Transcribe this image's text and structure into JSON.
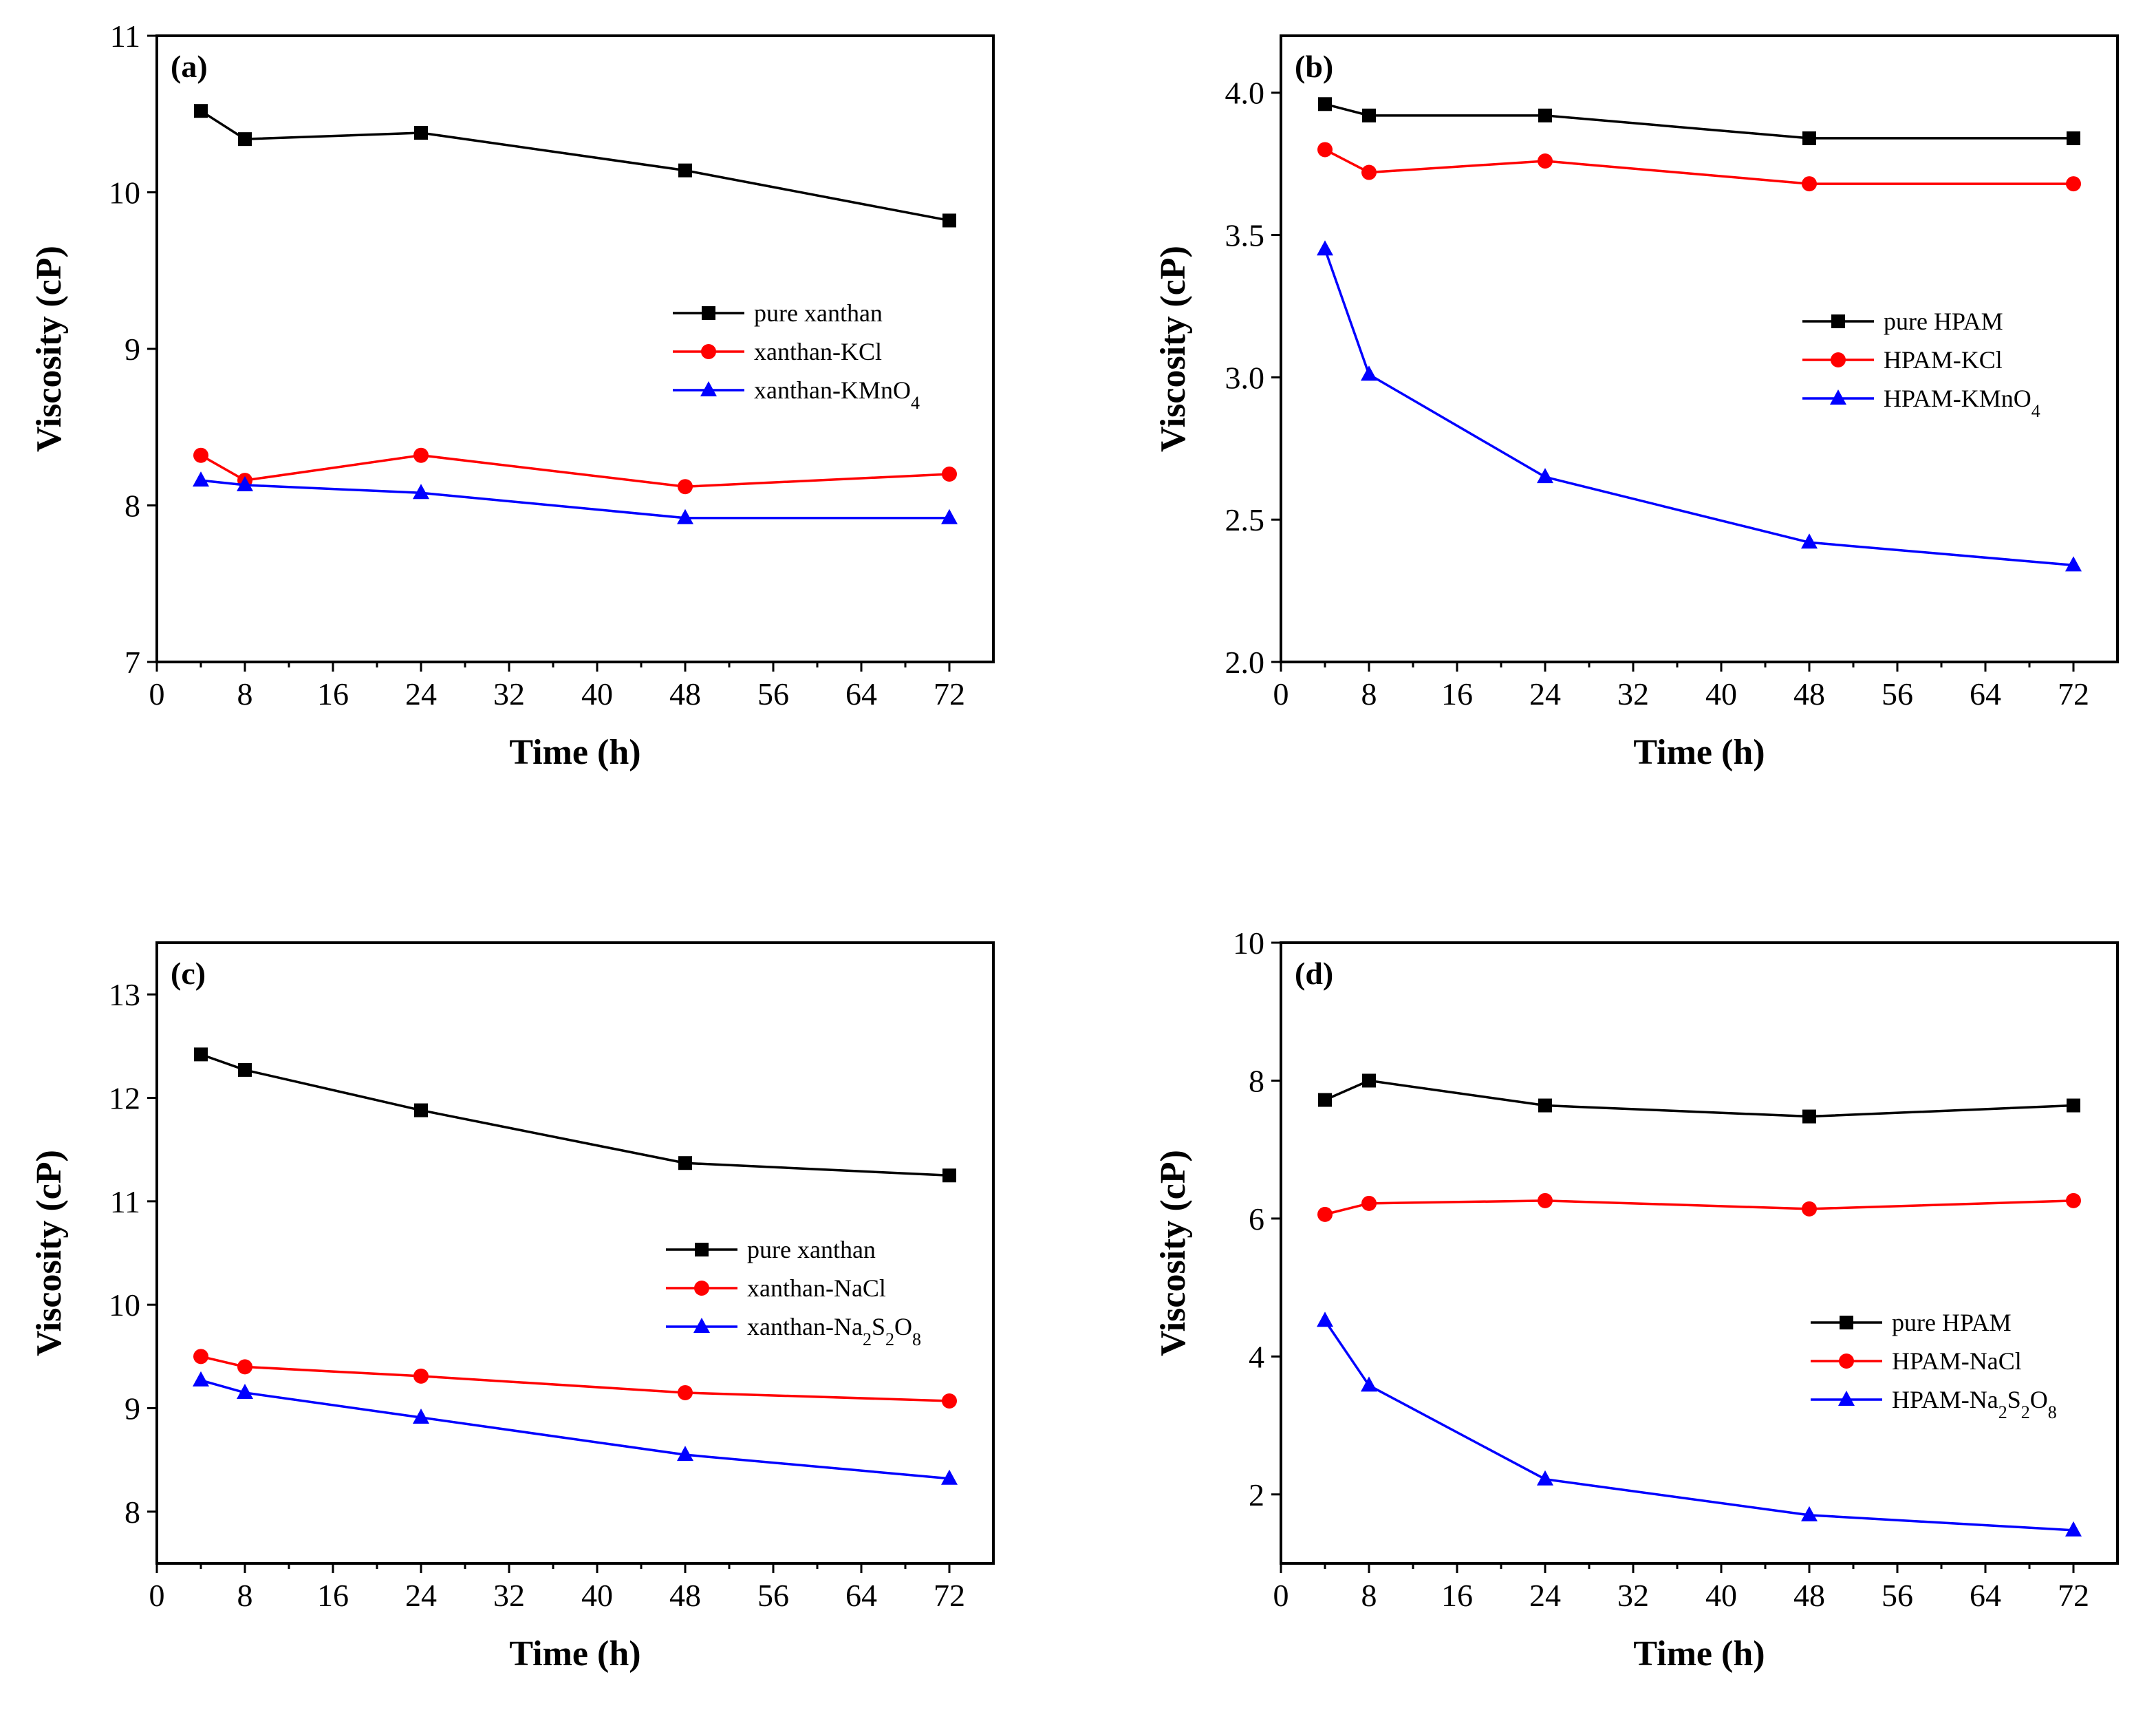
{
  "chart_data": [
    {
      "type": "line",
      "panel": "(a)",
      "xlabel": "Time (h)",
      "ylabel": "Viscosity (cP)",
      "xlim": [
        0,
        76
      ],
      "ylim": [
        7,
        11
      ],
      "x_ticks": [
        0,
        8,
        16,
        24,
        32,
        40,
        48,
        56,
        64,
        72
      ],
      "y_ticks": [
        7,
        8,
        9,
        10,
        11
      ],
      "y_tick_labels": [
        "7",
        "8",
        "9",
        "10",
        "11"
      ],
      "legend_position": "right-middle",
      "x": [
        4,
        8,
        24,
        48,
        72
      ],
      "series": [
        {
          "name": "pure xanthan",
          "label": "pure xanthan",
          "sub": "",
          "color": "#000000",
          "marker": "square",
          "values": [
            10.52,
            10.34,
            10.38,
            10.14,
            9.82
          ]
        },
        {
          "name": "xanthan-KCl",
          "label": "xanthan-KCl",
          "sub": "",
          "color": "#ff0000",
          "marker": "circle",
          "values": [
            8.32,
            8.16,
            8.32,
            8.12,
            8.2
          ]
        },
        {
          "name": "xanthan-KMnO4",
          "label": "xanthan-KMnO",
          "sub": "4",
          "color": "#0000ff",
          "marker": "triangle",
          "values": [
            8.16,
            8.13,
            8.08,
            7.92,
            7.92
          ]
        }
      ]
    },
    {
      "type": "line",
      "panel": "(b)",
      "xlabel": "Time (h)",
      "ylabel": "Viscosity (cP)",
      "xlim": [
        0,
        76
      ],
      "ylim": [
        2.0,
        4.2
      ],
      "x_ticks": [
        0,
        8,
        16,
        24,
        32,
        40,
        48,
        56,
        64,
        72
      ],
      "y_ticks": [
        2.0,
        2.5,
        3.0,
        3.5,
        4.0
      ],
      "y_tick_labels": [
        "2.0",
        "2.5",
        "3.0",
        "3.5",
        "4.0"
      ],
      "legend_position": "right-middle",
      "x": [
        4,
        8,
        24,
        48,
        72
      ],
      "series": [
        {
          "name": "pure HPAM",
          "label": "pure HPAM",
          "sub": "",
          "color": "#000000",
          "marker": "square",
          "values": [
            3.96,
            3.92,
            3.92,
            3.84,
            3.84
          ]
        },
        {
          "name": "HPAM-KCl",
          "label": "HPAM-KCl",
          "sub": "",
          "color": "#ff0000",
          "marker": "circle",
          "values": [
            3.8,
            3.72,
            3.76,
            3.68,
            3.68
          ]
        },
        {
          "name": "HPAM-KMnO4",
          "label": "HPAM-KMnO",
          "sub": "4",
          "color": "#0000ff",
          "marker": "triangle",
          "values": [
            3.45,
            3.01,
            2.65,
            2.42,
            2.34
          ]
        }
      ]
    },
    {
      "type": "line",
      "panel": "(c)",
      "xlabel": "Time (h)",
      "ylabel": "Viscosity (cP)",
      "xlim": [
        0,
        76
      ],
      "ylim": [
        7.5,
        13.5
      ],
      "x_ticks": [
        0,
        8,
        16,
        24,
        32,
        40,
        48,
        56,
        64,
        72
      ],
      "y_ticks": [
        8,
        9,
        10,
        11,
        12,
        13
      ],
      "y_tick_labels": [
        "8",
        "9",
        "10",
        "11",
        "12",
        "13"
      ],
      "legend_position": "right-middle",
      "x": [
        4,
        8,
        24,
        48,
        72
      ],
      "series": [
        {
          "name": "pure xanthan",
          "label": "pure xanthan",
          "sub": "",
          "color": "#000000",
          "marker": "square",
          "values": [
            12.42,
            12.27,
            11.88,
            11.37,
            11.25
          ]
        },
        {
          "name": "xanthan-NaCl",
          "label": "xanthan-NaCl",
          "sub": "",
          "color": "#ff0000",
          "marker": "circle",
          "values": [
            9.5,
            9.4,
            9.31,
            9.15,
            9.07
          ]
        },
        {
          "name": "xanthan-Na2S2O8",
          "label": "xanthan-Na2S2O8",
          "sub": "",
          "color": "#0000ff",
          "marker": "triangle",
          "values": [
            9.27,
            9.15,
            8.91,
            8.55,
            8.32
          ]
        }
      ]
    },
    {
      "type": "line",
      "panel": "(d)",
      "xlabel": "Time (h)",
      "ylabel": "Viscosity (cP)",
      "xlim": [
        0,
        76
      ],
      "ylim": [
        1,
        10
      ],
      "x_ticks": [
        0,
        8,
        16,
        24,
        32,
        40,
        48,
        56,
        64,
        72
      ],
      "y_ticks": [
        2,
        4,
        6,
        8,
        10
      ],
      "y_tick_labels": [
        "2",
        "4",
        "6",
        "8",
        "10"
      ],
      "legend_position": "right-lower",
      "x": [
        4,
        8,
        24,
        48,
        72
      ],
      "series": [
        {
          "name": "pure HPAM",
          "label": "pure HPAM",
          "sub": "",
          "color": "#000000",
          "marker": "square",
          "values": [
            7.72,
            8.0,
            7.64,
            7.48,
            7.64
          ]
        },
        {
          "name": "HPAM-NaCl",
          "label": "HPAM-NaCl",
          "sub": "",
          "color": "#ff0000",
          "marker": "circle",
          "values": [
            6.06,
            6.22,
            6.26,
            6.14,
            6.26
          ]
        },
        {
          "name": "HPAM-Na2S2O8",
          "label": "HPAM-Na2S2O8",
          "sub": "",
          "color": "#0000ff",
          "marker": "triangle",
          "values": [
            4.52,
            3.58,
            2.22,
            1.7,
            1.48
          ]
        }
      ]
    }
  ]
}
